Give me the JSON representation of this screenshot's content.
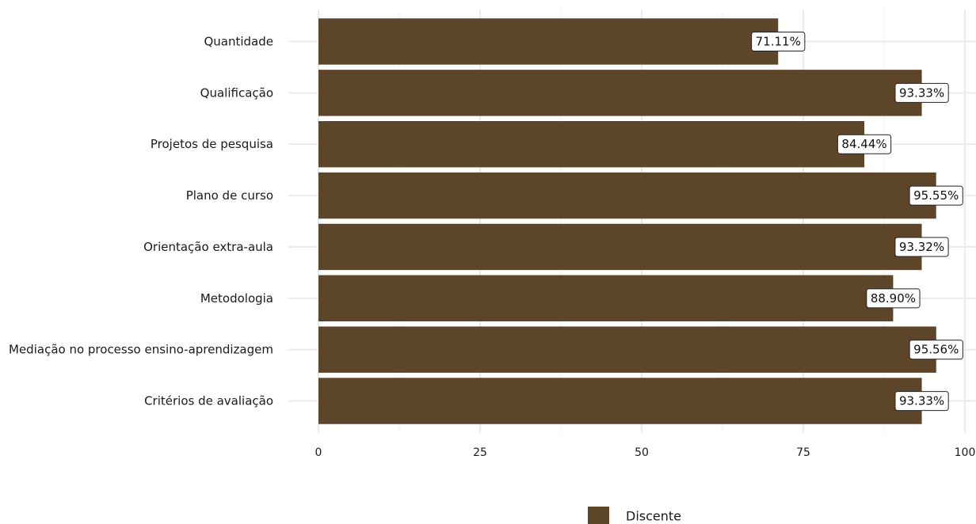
{
  "chart_data": {
    "type": "bar",
    "orientation": "horizontal",
    "categories": [
      "Quantidade",
      "Qualificação",
      "Projetos de pesquisa",
      "Plano de curso",
      "Orientação extra-aula",
      "Metodologia",
      "Mediação no processo ensino-aprendizagem",
      "Critérios de avaliação"
    ],
    "series": [
      {
        "name": "Discente",
        "values": [
          71.11,
          93.33,
          84.44,
          95.55,
          93.32,
          88.9,
          95.56,
          93.33
        ],
        "labels": [
          "71.11%",
          "93.33%",
          "84.44%",
          "95.55%",
          "93.32%",
          "88.90%",
          "95.56%",
          "93.33%"
        ],
        "color": "#5d452a"
      }
    ],
    "xlim": [
      0,
      100
    ],
    "x_ticks": [
      "0",
      "25",
      "50",
      "75",
      "100"
    ],
    "grid": true,
    "legend": {
      "position": "bottom",
      "entries": [
        "Discente"
      ]
    },
    "title": "",
    "xlabel": "",
    "ylabel": ""
  }
}
